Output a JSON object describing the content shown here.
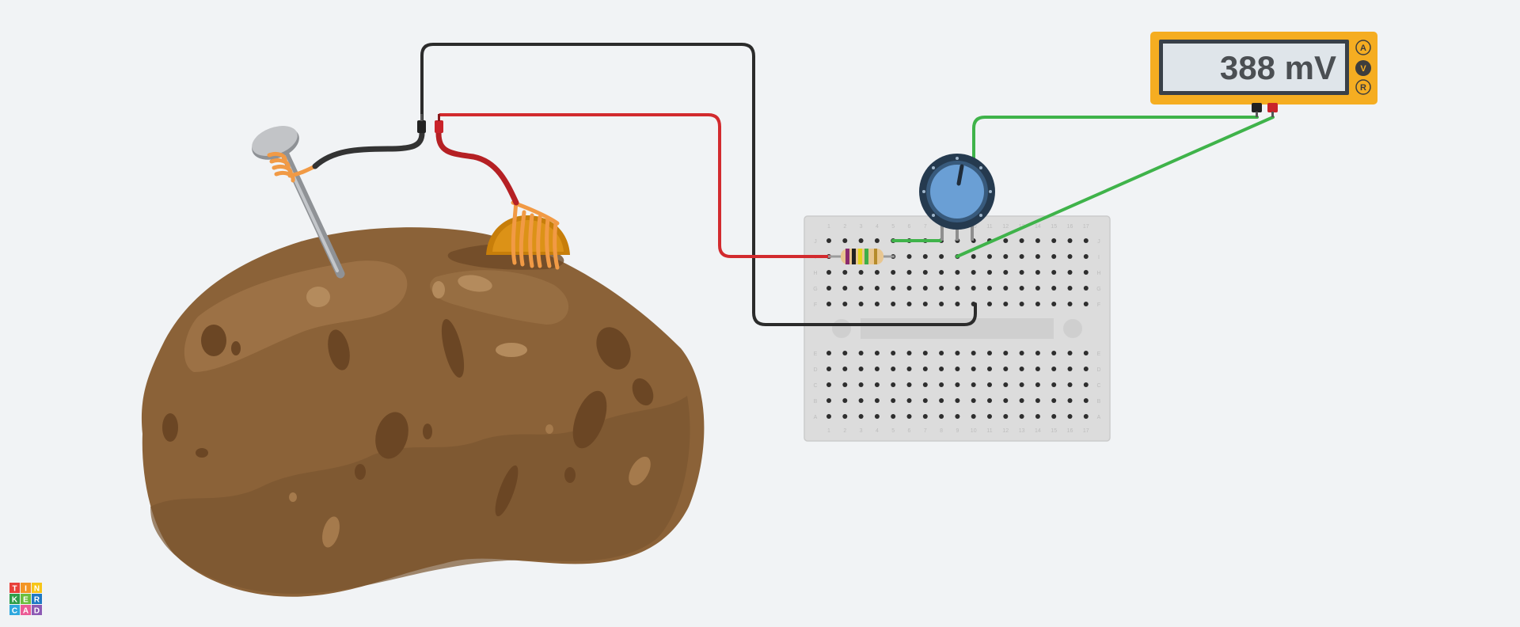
{
  "app": {
    "logo_letters": [
      "T",
      "I",
      "N",
      "K",
      "E",
      "R",
      "C",
      "A",
      "D"
    ],
    "logo_colors": [
      "#e8403a",
      "#f39524",
      "#f7c518",
      "#2f9e49",
      "#6bbf3d",
      "#1f79c4",
      "#2fa8de",
      "#eb5b95",
      "#8d5ab4"
    ]
  },
  "multimeter": {
    "reading": "388 mV",
    "mode_labels": [
      "A",
      "V",
      "R"
    ],
    "active_mode": "V",
    "probe_colors": [
      "#222222",
      "#c9232a"
    ]
  },
  "breadboard": {
    "top_row_letters": [
      "J",
      "I",
      "H",
      "G",
      "F"
    ],
    "bottom_row_letters": [
      "E",
      "D",
      "C",
      "B",
      "A"
    ],
    "column_numbers": [
      "1",
      "2",
      "3",
      "4",
      "5",
      "6",
      "7",
      "8",
      "9",
      "10",
      "11",
      "12",
      "13",
      "14",
      "15",
      "16",
      "17"
    ]
  },
  "components": {
    "potato": "potato",
    "nail": "galvanized-nail",
    "copper_coin": "copper-electrode",
    "resistor": "resistor",
    "potentiometer": "potentiometer"
  },
  "wires": {
    "black": "#2b2b2b",
    "red": "#d22a2e",
    "green": "#3fb34a"
  }
}
